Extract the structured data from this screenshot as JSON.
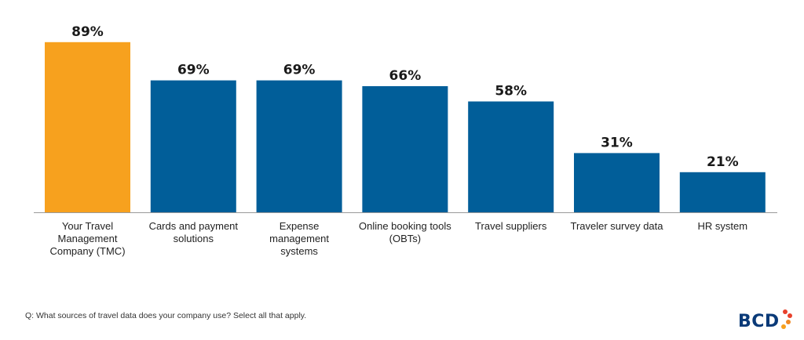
{
  "chart_data": {
    "type": "bar",
    "categories": [
      "Your Travel\nManagement\nCompany (TMC)",
      "Cards and payment\nsolutions",
      "Expense management\nsystems",
      "Online booking tools\n(OBTs)",
      "Travel suppliers",
      "Traveler survey data",
      "HR system"
    ],
    "values": [
      89,
      69,
      69,
      66,
      58,
      31,
      21
    ],
    "value_labels": [
      "89%",
      "69%",
      "69%",
      "66%",
      "58%",
      "31%",
      "21%"
    ],
    "ylim": [
      0,
      100
    ],
    "unit": "%",
    "bar_colors": [
      "#F7A11E",
      "#015E99",
      "#015E99",
      "#015E99",
      "#015E99",
      "#015E99",
      "#015E99"
    ],
    "grid": false,
    "legend": "none"
  },
  "footer": {
    "question": "Q: What sources of travel data does your company use? Select all that apply."
  },
  "logo": {
    "text": "BCD",
    "dot_colors": [
      "#E8412C",
      "#E8412C",
      "#F08A24",
      "#F7A11E"
    ]
  }
}
